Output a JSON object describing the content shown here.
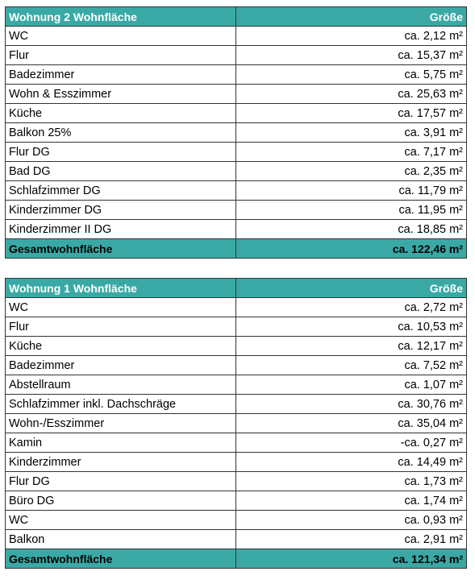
{
  "tables": [
    {
      "header": [
        "Wohnung 2 Wohnfläche",
        "Größe"
      ],
      "rows": [
        [
          "WC",
          "ca. 2,12 m²"
        ],
        [
          "Flur",
          "ca. 15,37 m²"
        ],
        [
          "Badezimmer",
          "ca. 5,75 m²"
        ],
        [
          "Wohn & Esszimmer",
          "ca. 25,63 m²"
        ],
        [
          "Küche",
          "ca. 17,57 m²"
        ],
        [
          "Balkon 25%",
          "ca. 3,91 m²"
        ],
        [
          "Flur DG",
          "ca. 7,17 m²"
        ],
        [
          "Bad DG",
          "ca. 2,35 m²"
        ],
        [
          "Schlafzimmer DG",
          "ca. 11,79 m²"
        ],
        [
          "Kinderzimmer DG",
          "ca. 11,95 m²"
        ],
        [
          "Kinderzimmer II DG",
          "ca. 18,85 m²"
        ]
      ],
      "total": [
        "Gesamtwohnfläche",
        "ca. 122,46 m²"
      ]
    },
    {
      "header": [
        "Wohnung 1 Wohnfläche",
        "Größe"
      ],
      "rows": [
        [
          "WC",
          "ca. 2,72 m²"
        ],
        [
          "Flur",
          "ca. 10,53 m²"
        ],
        [
          "Küche",
          "ca. 12,17 m²"
        ],
        [
          "Badezimmer",
          "ca. 7,52 m²"
        ],
        [
          "Abstellraum",
          "ca. 1,07 m²"
        ],
        [
          "Schlafzimmer inkl. Dachschräge",
          "ca. 30,76 m²"
        ],
        [
          "Wohn-/Esszimmer",
          "ca. 35,04 m²"
        ],
        [
          "Kamin",
          "-ca. 0,27 m²"
        ],
        [
          "Kinderzimmer",
          "ca. 14,49 m²"
        ],
        [
          "Flur DG",
          "ca. 1,73 m²"
        ],
        [
          "Büro DG",
          "ca. 1,74 m²"
        ],
        [
          "WC",
          "ca. 0,93 m²"
        ],
        [
          "Balkon",
          "ca. 2,91 m²"
        ]
      ],
      "total": [
        "Gesamtwohnfläche",
        "ca. 121,34 m²"
      ]
    }
  ]
}
